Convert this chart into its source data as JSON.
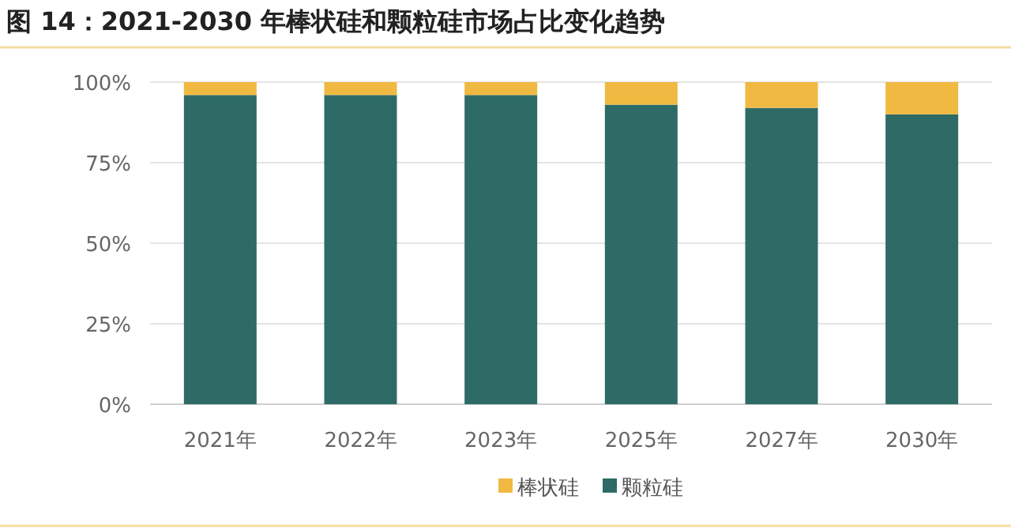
{
  "chart_data": {
    "type": "bar",
    "title": "图 14：2021-2030 年棒状硅和颗粒硅市场占比变化趋势",
    "categories": [
      "2021年",
      "2022年",
      "2023年",
      "2025年",
      "2027年",
      "2030年"
    ],
    "stacked": true,
    "series": [
      {
        "name": "颗粒硅",
        "color": "#2e6b66",
        "values": [
          96,
          96,
          96,
          93,
          92,
          90
        ]
      },
      {
        "name": "棒状硅",
        "color": "#f0b942",
        "values": [
          4,
          4,
          4,
          7,
          8,
          10
        ]
      }
    ],
    "ylim": [
      0,
      100
    ],
    "yticks": [
      {
        "value": 0,
        "label": "0%"
      },
      {
        "value": 25,
        "label": "25%"
      },
      {
        "value": 50,
        "label": "50%"
      },
      {
        "value": 75,
        "label": "75%"
      },
      {
        "value": 100,
        "label": "100%"
      }
    ],
    "grid": "y",
    "legend": "bottom"
  }
}
